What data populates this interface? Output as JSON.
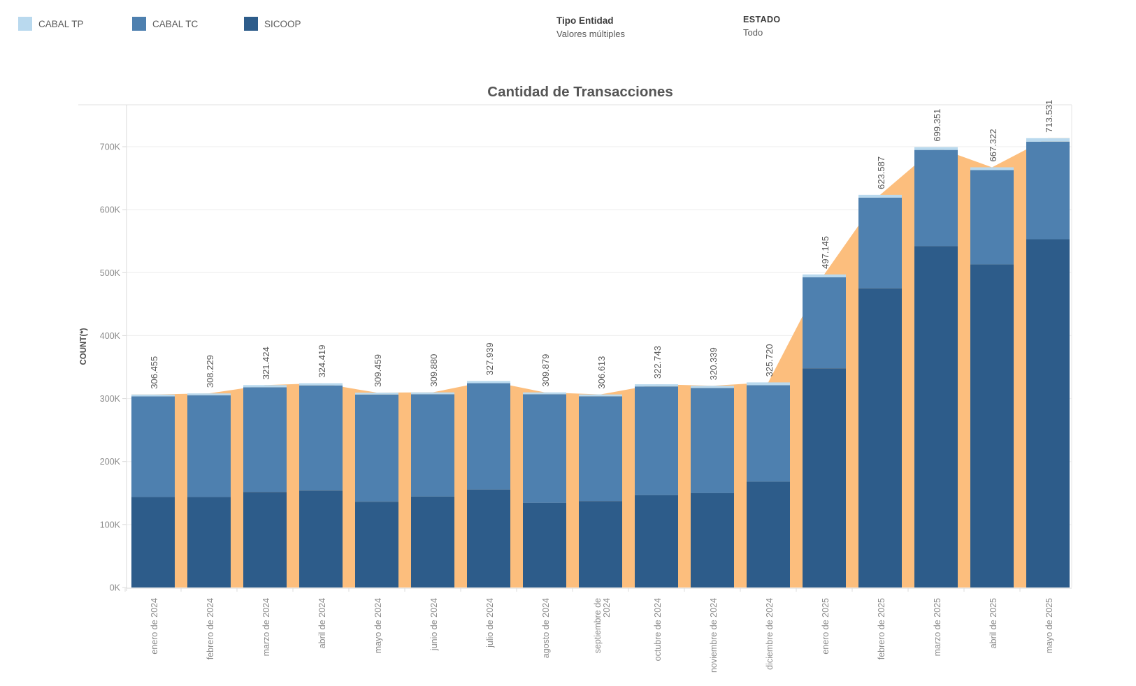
{
  "legend": {
    "items": [
      {
        "label": "CABAL TP",
        "color": "#b9d9ee"
      },
      {
        "label": "CABAL TC",
        "color": "#4e80af"
      },
      {
        "label": "SICOOP",
        "color": "#2d5c8a"
      }
    ]
  },
  "filters": {
    "tipo_entidad": {
      "label": "Tipo Entidad",
      "value": "Valores múltiples"
    },
    "estado": {
      "label": "ESTADO",
      "value": "Todo"
    }
  },
  "chart_data": {
    "type": "bar",
    "stacked": true,
    "title": "Cantidad de Transacciones",
    "xlabel": "",
    "ylabel": "COUNT(*)",
    "grid": true,
    "legend_position": "top-left",
    "ylim": [
      0,
      766000
    ],
    "yticks": [
      "0K",
      "100K",
      "200K",
      "300K",
      "400K",
      "500K",
      "600K",
      "700K"
    ],
    "categories": [
      "enero de 2024",
      "febrero de 2024",
      "marzo de 2024",
      "abril de 2024",
      "mayo de 2024",
      "junio de 2024",
      "julio de 2024",
      "agosto de 2024",
      "septiembre de 2024",
      "octubre de 2024",
      "noviembre de 2024",
      "diciembre de 2024",
      "enero de 2025",
      "febrero de 2025",
      "marzo de 2025",
      "abril de 2025",
      "mayo de 2025"
    ],
    "totals": [
      306455,
      308229,
      321424,
      324419,
      309459,
      309880,
      327939,
      309879,
      306613,
      322743,
      320339,
      325720,
      497145,
      623587,
      699351,
      667322,
      713531
    ],
    "total_labels": [
      "306.455",
      "308.229",
      "321.424",
      "324.419",
      "309.459",
      "309.880",
      "327.939",
      "309.879",
      "306.613",
      "322.743",
      "320.339",
      "325.720",
      "497.145",
      "623.587",
      "699.351",
      "667.322",
      "713.531"
    ],
    "series": [
      {
        "name": "CABAL TP",
        "color": "#b9d9ee",
        "values": [
          3000,
          3000,
          3500,
          3500,
          3000,
          3000,
          3500,
          3000,
          3000,
          3500,
          3500,
          4500,
          4500,
          4500,
          4500,
          4500,
          5500
        ]
      },
      {
        "name": "CABAL TC",
        "color": "#4e80af",
        "values": [
          159855,
          161629,
          166224,
          167019,
          170259,
          162580,
          169039,
          172579,
          166413,
          172743,
          167039,
          153220,
          144645,
          144087,
          152851,
          149822,
          155031
        ]
      },
      {
        "name": "SICOOP",
        "color": "#2d5c8a",
        "values": [
          143600,
          143600,
          151700,
          153900,
          136200,
          144300,
          155400,
          134300,
          137200,
          146500,
          149800,
          168000,
          348000,
          475000,
          542000,
          513000,
          553000
        ]
      }
    ],
    "area_overlay": {
      "name": "total-area",
      "color": "#fcbe7d",
      "follows": "totals"
    }
  }
}
